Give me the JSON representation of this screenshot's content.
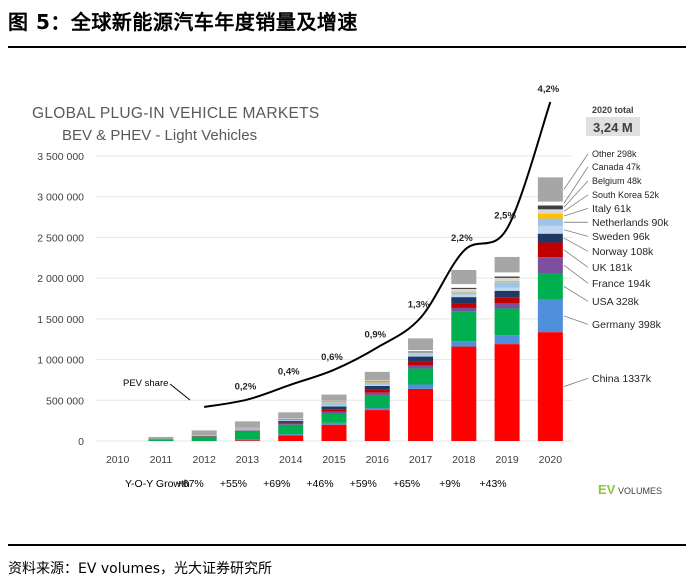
{
  "figure_title": "图 5：全球新能源汽车年度销量及增速",
  "source": "资料来源：EV volumes，光大证券研究所",
  "logo": {
    "ev": "EV",
    "volumes": "VOLUMES",
    "color": "#8dc63f"
  },
  "chart_data": {
    "type": "bar",
    "stacked": true,
    "title": "GLOBAL PLUG-IN VEHICLE MARKETS",
    "subtitle": "BEV & PHEV - Light Vehicles",
    "categories": [
      "2010",
      "2011",
      "2012",
      "2013",
      "2014",
      "2015",
      "2016",
      "2017",
      "2018",
      "2019",
      "2020"
    ],
    "ylim": [
      0,
      3500000
    ],
    "yticks": [
      0,
      500000,
      1000000,
      1500000,
      2000000,
      2500000,
      3000000,
      3500000
    ],
    "ytick_labels": [
      "0",
      "500 000",
      "1 000 000",
      "1 500 000",
      "2 000 000",
      "2 500 000",
      "3 000 000",
      "3 500 000"
    ],
    "series": [
      {
        "name": "China",
        "color": "#ff0000",
        "values": [
          0,
          0,
          0,
          10000,
          70000,
          200000,
          380000,
          640000,
          1160000,
          1190000,
          1337000
        ]
      },
      {
        "name": "Germany",
        "color": "#4f8fdc",
        "values": [
          0,
          0,
          0,
          5000,
          12000,
          23000,
          25000,
          54000,
          67000,
          108000,
          398000
        ]
      },
      {
        "name": "USA",
        "color": "#00b050",
        "values": [
          0,
          18000,
          53000,
          97000,
          118000,
          115000,
          160000,
          197000,
          361000,
          330000,
          328000
        ]
      },
      {
        "name": "France",
        "color": "#7f4f9f",
        "values": [
          0,
          2000,
          6000,
          10000,
          11000,
          23000,
          29000,
          37000,
          46000,
          62000,
          194000
        ]
      },
      {
        "name": "UK",
        "color": "#c00000",
        "values": [
          0,
          0,
          2000,
          4000,
          15000,
          29000,
          37000,
          47000,
          60000,
          75000,
          181000
        ]
      },
      {
        "name": "Norway",
        "color": "#1f3864",
        "values": [
          0,
          2000,
          4000,
          8000,
          20000,
          34000,
          45000,
          62000,
          73000,
          80000,
          108000
        ]
      },
      {
        "name": "Sweden",
        "color": "#bdd7ee",
        "values": [
          0,
          0,
          1000,
          1000,
          5000,
          9000,
          14000,
          20000,
          30000,
          40000,
          96000
        ]
      },
      {
        "name": "Netherlands",
        "color": "#9dc3e6",
        "values": [
          0,
          1000,
          5000,
          23000,
          15000,
          44000,
          25000,
          12000,
          28000,
          66000,
          90000
        ]
      },
      {
        "name": "Italy",
        "color": "#ffc000",
        "values": [
          0,
          0,
          0,
          1000,
          1000,
          2000,
          3000,
          5000,
          10000,
          17000,
          61000
        ]
      },
      {
        "name": "South Korea",
        "color": "#d9d9d9",
        "values": [
          0,
          0,
          0,
          1000,
          1000,
          3000,
          5000,
          14000,
          32000,
          35000,
          52000
        ]
      },
      {
        "name": "Belgium",
        "color": "#404040",
        "values": [
          0,
          0,
          0,
          2000,
          2000,
          5000,
          9000,
          12000,
          15000,
          17000,
          48000
        ]
      },
      {
        "name": "Canada",
        "color": "#ffffff",
        "values": [
          0,
          0,
          0,
          1000,
          5000,
          7000,
          11000,
          16000,
          45000,
          51000,
          47000
        ]
      },
      {
        "name": "Other",
        "color": "#a6a6a6",
        "values": [
          0,
          27000,
          59000,
          78000,
          77000,
          76000,
          106000,
          144000,
          173000,
          189000,
          298000
        ]
      }
    ],
    "series_labels": [
      "China 1337k",
      "Germany 398k",
      "USA 328k",
      "France 194k",
      "UK 181k",
      "Norway 108k",
      "Sweden 96k",
      "Netherlands 90k",
      "Italy 61k",
      "South Korea 52k",
      "Belgium 48k",
      "Canada 47k",
      "Other 298k"
    ],
    "share_line": {
      "name": "PEV share",
      "years": [
        "2012",
        "2013",
        "2014",
        "2015",
        "2016",
        "2017",
        "2018",
        "2019",
        "2020"
      ],
      "values": [
        0.1,
        0.2,
        0.4,
        0.6,
        0.9,
        1.3,
        2.2,
        2.5,
        4.2
      ],
      "labels": [
        "",
        "0,2%",
        "0,4%",
        "0,6%",
        "0,9%",
        "1,3%",
        "2,2%",
        "2,5%",
        "4,2%"
      ]
    },
    "total_box": {
      "label": "2020 total",
      "value": "3,24 M"
    },
    "yoy": {
      "label": "Y-O-Y Growth",
      "values": [
        "+67%",
        "+55%",
        "+69%",
        "+46%",
        "+59%",
        "+65%",
        "+9%",
        "+43%"
      ]
    }
  }
}
